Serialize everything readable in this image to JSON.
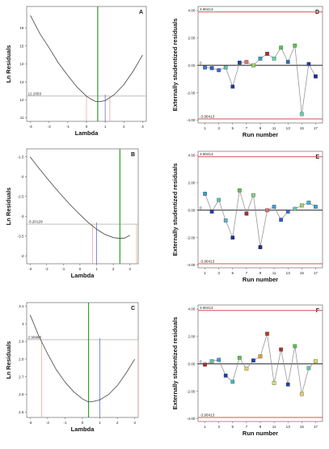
{
  "panels": [
    {
      "id": "A",
      "chart_data": {
        "type": "line",
        "panel_label": "A",
        "xlabel": "Lambda",
        "ylabel": "Ln Residuals",
        "xlim": [
          -3.2,
          3.2
        ],
        "ylim": [
          10.8,
          17.2
        ],
        "x_ticks": [
          "-3",
          "-2",
          "-1",
          "0",
          "1",
          "2",
          "3"
        ],
        "x_tick_values": [
          -3,
          -2,
          -1,
          0,
          1,
          2,
          3
        ],
        "y_ticks": [
          "11",
          "12",
          "13",
          "14",
          "15",
          "16"
        ],
        "y_tick_values": [
          11,
          12,
          13,
          14,
          15,
          16
        ],
        "curve": {
          "x": [
            -3,
            -2.5,
            -2,
            -1.5,
            -1,
            -0.5,
            0,
            0.3,
            0.5,
            0.7,
            1,
            1.5,
            2,
            2.5,
            3
          ],
          "y": [
            16.7,
            15.7,
            14.9,
            14.05,
            13.35,
            12.7,
            12.2,
            12.0,
            11.9,
            11.9,
            11.95,
            12.3,
            12.85,
            13.6,
            14.5
          ]
        },
        "ci_threshold": 12.2053,
        "ci_label": "12.2053",
        "ci_low": 0.0,
        "ci_high": 1.25,
        "best": 0.6,
        "current": 1.0
      }
    },
    {
      "id": "B",
      "chart_data": {
        "type": "line",
        "panel_label": "B",
        "xlabel": "Lambda",
        "ylabel": "Ln Residuals",
        "xlim": [
          -3.2,
          3.5
        ],
        "ylim": [
          -4.2,
          -1.3
        ],
        "x_ticks": [
          "-3",
          "-2",
          "-1",
          "0",
          "1",
          "2",
          "3"
        ],
        "x_tick_values": [
          -3,
          -2,
          -1,
          0,
          1,
          2,
          3
        ],
        "y_ticks": [
          "-1.5",
          "-2",
          "-2.5",
          "-3",
          "-3.5",
          "-4"
        ],
        "y_tick_values": [
          -1.5,
          -2,
          -2.5,
          -3,
          -3.5,
          -4
        ],
        "curve": {
          "x": [
            -3,
            -2.5,
            -2,
            -1.5,
            -1,
            -0.5,
            0,
            0.5,
            1,
            1.5,
            2,
            2.4,
            2.7,
            3
          ],
          "y": [
            -1.5,
            -1.77,
            -2.03,
            -2.28,
            -2.52,
            -2.75,
            -2.96,
            -3.16,
            -3.33,
            -3.46,
            -3.54,
            -3.56,
            -3.55,
            -3.48
          ]
        },
        "ci_threshold": -3.20129,
        "ci_label": "-3.20129",
        "ci_low": 0.75,
        "ci_high": 3.4,
        "best": 2.4,
        "current": 1.0
      }
    },
    {
      "id": "C",
      "chart_data": {
        "type": "line",
        "panel_label": "C",
        "xlabel": "Lambda",
        "ylabel": "Ln Residuals",
        "xlim": [
          -3.2,
          3.2
        ],
        "ylim": [
          2.47,
          3.12
        ],
        "x_ticks": [
          "-3",
          "-2",
          "-1",
          "0",
          "1",
          "2",
          "3"
        ],
        "x_tick_values": [
          -3,
          -2,
          -1,
          0,
          1,
          2,
          3
        ],
        "y_ticks": [
          "2.5",
          "2.6",
          "2.7",
          "2.8",
          "2.9",
          "3",
          "3.1"
        ],
        "y_tick_values": [
          2.5,
          2.6,
          2.7,
          2.8,
          2.9,
          3.0,
          3.1
        ],
        "curve": {
          "x": [
            -3,
            -2.5,
            -2,
            -1.5,
            -1,
            -0.5,
            0,
            0.3,
            0.6,
            1,
            1.5,
            2,
            2.5,
            3
          ],
          "y": [
            3.05,
            2.93,
            2.83,
            2.74,
            2.67,
            2.615,
            2.575,
            2.56,
            2.56,
            2.57,
            2.6,
            2.65,
            2.72,
            2.8
          ]
        },
        "ci_threshold": 2.90968,
        "ci_label": "2.90968",
        "ci_low": -2.35,
        "ci_high": 3.2,
        "best": 0.35,
        "current": 1.0
      }
    },
    {
      "id": "D",
      "chart_data": {
        "type": "line",
        "panel_label": "D",
        "xlabel": "Run number",
        "ylabel": "Externally studentized residuals",
        "xlim": [
          0,
          18
        ],
        "ylim": [
          -4.2,
          4.3
        ],
        "x_ticks": [
          "1",
          "3",
          "5",
          "7",
          "9",
          "11",
          "13",
          "15",
          "17"
        ],
        "x_tick_values": [
          1,
          3,
          5,
          7,
          9,
          11,
          13,
          15,
          17
        ],
        "y_ticks": [
          "4.00",
          "2.00",
          "0.00",
          "-2.00",
          "-4.00"
        ],
        "y_tick_values": [
          4,
          2,
          0,
          -2,
          -4
        ],
        "limit_label_top": "3.90413",
        "limit_label_bottom": "-3.90413",
        "zero_label": "0",
        "limit": 3.90413,
        "x": [
          1,
          2,
          3,
          4,
          5,
          6,
          7,
          8,
          9,
          10,
          11,
          12,
          13,
          14,
          15,
          16,
          17
        ],
        "y": [
          -0.15,
          -0.2,
          -0.35,
          -0.15,
          -1.55,
          0.2,
          0.25,
          0.0,
          0.5,
          0.85,
          0.5,
          1.3,
          0.25,
          1.45,
          -3.55,
          0.1,
          -0.8
        ],
        "colors": [
          "#3a7ad6",
          "#2b5cc7",
          "#3a6ad6",
          "#66c4a8",
          "#1c3a9a",
          "#1f3fa8",
          "#e07070",
          "#9ad66a",
          "#2e9ec9",
          "#a8302a",
          "#5fd6a8",
          "#56c44a",
          "#2e6ec9",
          "#56c44a",
          "#5fd6a8",
          "#1f3fa8",
          "#1c2f8a"
        ]
      }
    },
    {
      "id": "E",
      "chart_data": {
        "type": "line",
        "panel_label": "E",
        "xlabel": "Run number",
        "ylabel": "Externally studentized residuals",
        "xlim": [
          0,
          18
        ],
        "ylim": [
          -4.2,
          4.3
        ],
        "x_ticks": [
          "1",
          "3",
          "5",
          "7",
          "9",
          "11",
          "13",
          "15",
          "17"
        ],
        "x_tick_values": [
          1,
          3,
          5,
          7,
          9,
          11,
          13,
          15,
          17
        ],
        "y_ticks": [
          "4.00",
          "2.00",
          "0.00",
          "-2.00",
          "-4.00"
        ],
        "y_tick_values": [
          4,
          2,
          0,
          -2,
          -4
        ],
        "limit_label_top": "3.90413",
        "limit_label_bottom": "-3.90413",
        "zero_label": "0",
        "limit": 3.90413,
        "x": [
          1,
          2,
          3,
          4,
          5,
          6,
          7,
          8,
          9,
          10,
          11,
          12,
          13,
          14,
          15,
          16,
          17
        ],
        "y": [
          1.2,
          -0.1,
          0.75,
          -0.75,
          -2.0,
          1.45,
          -0.25,
          1.1,
          -2.7,
          0.0,
          0.25,
          -0.7,
          -0.1,
          0.1,
          0.35,
          0.55,
          0.25
        ],
        "colors": [
          "#3a9ed6",
          "#1f3fa8",
          "#66c4a8",
          "#5ab4d6",
          "#1c2f8a",
          "#56c44a",
          "#a8302a",
          "#7ad67a",
          "#1c2f8a",
          "#e07070",
          "#3a9ed6",
          "#2b5cc7",
          "#3a6ad6",
          "#66c4a8",
          "#9ad66a",
          "#3ab4e0",
          "#3a9ed6"
        ]
      }
    },
    {
      "id": "F",
      "chart_data": {
        "type": "line",
        "panel_label": "F",
        "xlabel": "Run number",
        "ylabel": "Externally studentized residuals",
        "xlim": [
          0,
          18
        ],
        "ylim": [
          -4.2,
          4.3
        ],
        "x_ticks": [
          "1",
          "3",
          "5",
          "7",
          "9",
          "11",
          "13",
          "15",
          "17"
        ],
        "x_tick_values": [
          1,
          3,
          5,
          7,
          9,
          11,
          13,
          15,
          17
        ],
        "y_ticks": [
          "4.00",
          "2.00",
          "0.00",
          "-2.00",
          "-4.00"
        ],
        "y_tick_values": [
          4,
          2,
          0,
          -2,
          -4
        ],
        "limit_label_top": "3.90413",
        "limit_label_bottom": "-3.90413",
        "zero_label": "0",
        "limit": 3.90413,
        "x": [
          1,
          2,
          3,
          4,
          5,
          6,
          7,
          8,
          9,
          10,
          11,
          12,
          13,
          14,
          15,
          16,
          17
        ],
        "y": [
          -0.05,
          0.2,
          0.3,
          -0.85,
          -1.3,
          0.45,
          -0.35,
          0.25,
          0.55,
          2.2,
          -1.4,
          1.05,
          -1.5,
          1.3,
          -2.2,
          -0.3,
          0.2
        ],
        "colors": [
          "#a8302a",
          "#66c4a8",
          "#3a9ed6",
          "#1f3fa8",
          "#3ab4c9",
          "#56c44a",
          "#e0d070",
          "#1f3fa8",
          "#e0a030",
          "#c04020",
          "#d6e070",
          "#a8302a",
          "#1f3fa8",
          "#56c44a",
          "#e0d070",
          "#66c4a8",
          "#d6e070"
        ]
      }
    }
  ],
  "colors": {
    "curve": "#444444",
    "best": "#2e9e2e",
    "current": "#4a5fc7",
    "ci": "#e89a9a",
    "threshold": "#9a9a9a",
    "limit": "#d65050",
    "zero": "#000000",
    "connector": "#8a8a8a"
  }
}
